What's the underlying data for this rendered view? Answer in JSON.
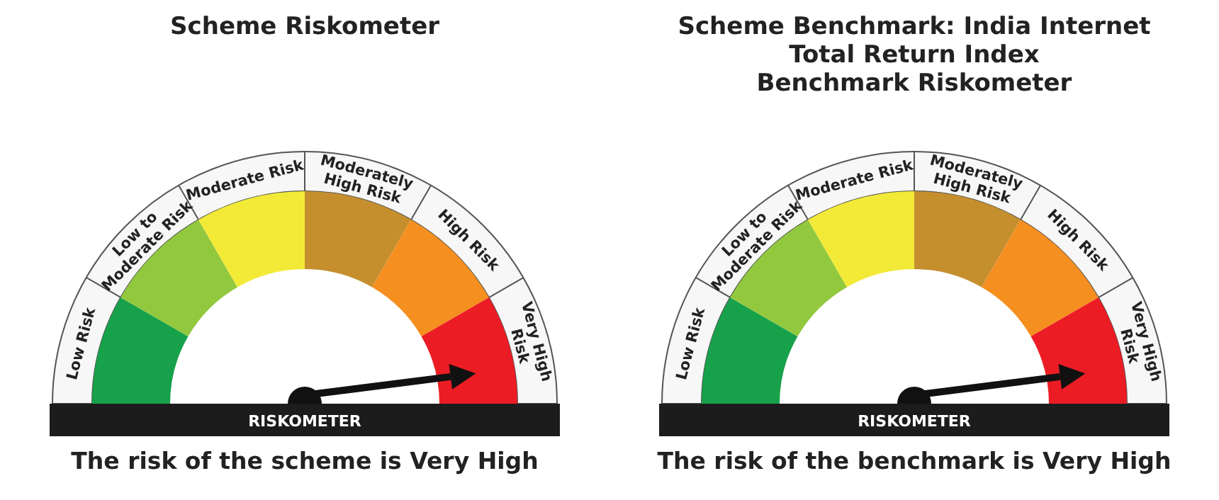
{
  "chart_data": [
    {
      "type": "donut",
      "title": "Scheme Riskometer",
      "categories": [
        "Low Risk",
        "Low to Moderate Risk",
        "Moderate Risk",
        "Moderately High Risk",
        "High Risk",
        "Very High Risk"
      ],
      "values": [
        16.67,
        16.67,
        16.66,
        16.67,
        16.67,
        16.66
      ],
      "colors": [
        "#17a14a",
        "#92c83e",
        "#f3ea37",
        "#c68f2e",
        "#f58f20",
        "#ec1c24"
      ],
      "needle": "Very High Risk",
      "annotations": [
        "RISKOMETER",
        "The risk of the scheme is Very High"
      ]
    },
    {
      "type": "donut",
      "title": "Scheme Benchmark: India Internet Total Return Index",
      "subtitle": "Benchmark Riskometer",
      "categories": [
        "Low Risk",
        "Low to Moderate Risk",
        "Moderate Risk",
        "Moderately High Risk",
        "High Risk",
        "Very High Risk"
      ],
      "values": [
        16.67,
        16.67,
        16.66,
        16.67,
        16.67,
        16.66
      ],
      "colors": [
        "#17a14a",
        "#92c83e",
        "#f3ea37",
        "#c68f2e",
        "#f58f20",
        "#ec1c24"
      ],
      "needle": "Very High Risk",
      "annotations": [
        "RISKOMETER",
        "The risk of the benchmark is Very High"
      ]
    }
  ]
}
